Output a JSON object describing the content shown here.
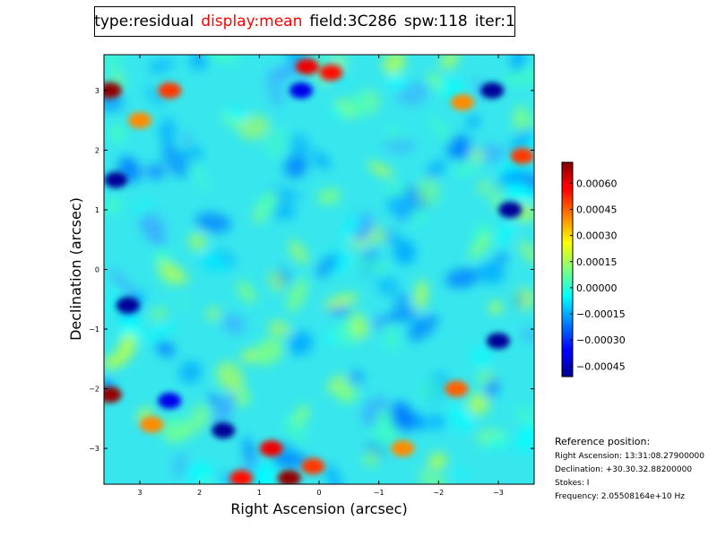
{
  "title": {
    "type_label": "type:residual",
    "display_label": "display:mean",
    "field_label": "field:3C286",
    "spw_label": "spw:118",
    "iter_label": "iter:1",
    "display_color": "#ff0000"
  },
  "chart_data": {
    "type": "heatmap",
    "xlabel": "Right Ascension (arcsec)",
    "ylabel": "Declination (arcsec)",
    "xlim": [
      3.6,
      -3.6
    ],
    "ylim": [
      -3.6,
      3.6
    ],
    "x_ticks": [
      3,
      2,
      1,
      0,
      -1,
      -2,
      -3
    ],
    "x_tick_labels": [
      "3",
      "2",
      "1",
      "0",
      "−1",
      "−2",
      "−3"
    ],
    "y_ticks": [
      3,
      2,
      1,
      0,
      -1,
      -2,
      -3
    ],
    "y_tick_labels": [
      "3",
      "2",
      "1",
      "0",
      "−1",
      "−2",
      "−3"
    ],
    "colorbar": {
      "vmin": -0.00051,
      "vmax": 0.00072,
      "colormap": "jet",
      "ticks": [
        0.0006,
        0.00045,
        0.0003,
        0.00015,
        0.0,
        -0.00015,
        -0.0003,
        -0.00045
      ],
      "tick_labels": [
        "0.00060",
        "0.00045",
        "0.00030",
        "0.00015",
        "0.00000",
        "−0.00015",
        "−0.00030",
        "−0.00045"
      ]
    },
    "notable_features": [
      {
        "ra": 3.5,
        "dec": 3.0,
        "value": 0.0007
      },
      {
        "ra": 2.5,
        "dec": 3.0,
        "value": 0.0005
      },
      {
        "ra": 0.2,
        "dec": 3.4,
        "value": 0.0006
      },
      {
        "ra": -0.2,
        "dec": 3.3,
        "value": 0.00055
      },
      {
        "ra": 0.3,
        "dec": 3.0,
        "value": -0.0004
      },
      {
        "ra": -2.4,
        "dec": 2.8,
        "value": 0.0004
      },
      {
        "ra": -2.9,
        "dec": 3.0,
        "value": -0.0005
      },
      {
        "ra": 3.0,
        "dec": 2.5,
        "value": 0.0004
      },
      {
        "ra": -3.4,
        "dec": 1.9,
        "value": 0.0005
      },
      {
        "ra": 3.4,
        "dec": 1.5,
        "value": -0.0005
      },
      {
        "ra": -3.2,
        "dec": 1.0,
        "value": -0.0005
      },
      {
        "ra": 3.2,
        "dec": -0.6,
        "value": -0.0005
      },
      {
        "ra": -3.0,
        "dec": -1.2,
        "value": -0.0005
      },
      {
        "ra": 3.5,
        "dec": -2.1,
        "value": 0.0007
      },
      {
        "ra": 2.5,
        "dec": -2.2,
        "value": -0.0004
      },
      {
        "ra": -2.3,
        "dec": -2.0,
        "value": 0.00045
      },
      {
        "ra": 1.6,
        "dec": -2.7,
        "value": -0.0005
      },
      {
        "ra": 0.8,
        "dec": -3.0,
        "value": 0.0006
      },
      {
        "ra": 1.3,
        "dec": -3.5,
        "value": 0.00055
      },
      {
        "ra": 0.5,
        "dec": -3.5,
        "value": 0.0007
      },
      {
        "ra": 0.1,
        "dec": -3.3,
        "value": 0.0005
      },
      {
        "ra": -1.4,
        "dec": -3.0,
        "value": 0.0004
      },
      {
        "ra": 2.8,
        "dec": -2.6,
        "value": 0.0004
      }
    ]
  },
  "reference": {
    "title": "Reference position:",
    "right_ascension": "Right Ascension: 13:31:08.27900000",
    "declination": "Declination: +30.30.32.88200000",
    "stokes": "Stokes: I",
    "frequency": "Frequency: 2.05508164e+10 Hz"
  }
}
